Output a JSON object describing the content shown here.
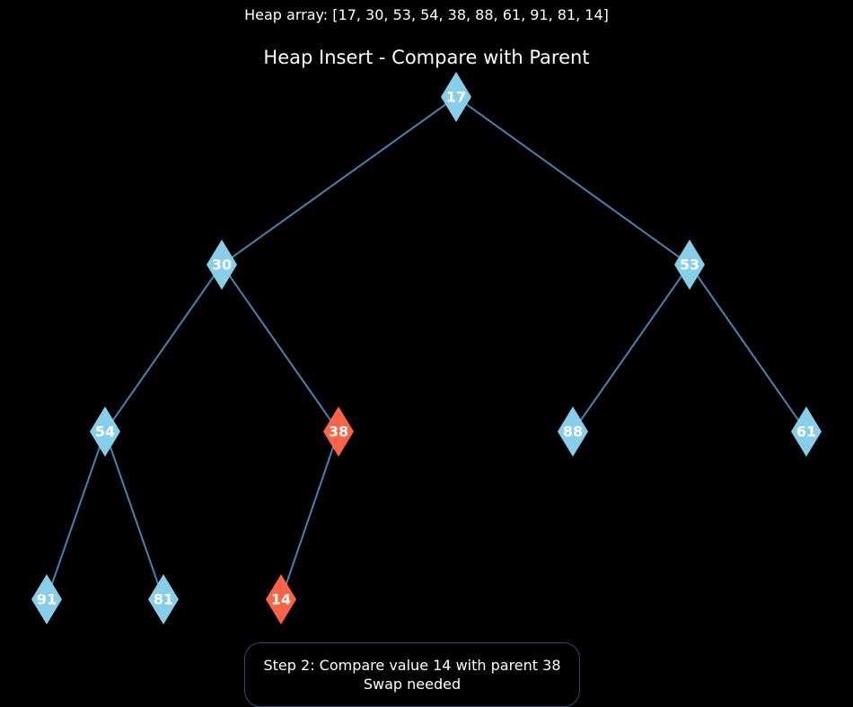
{
  "heap_array_label": "Heap array: [17, 30, 53, 54, 38, 88, 61, 91, 81, 14]",
  "title": "Heap Insert - Compare with Parent",
  "colors": {
    "background": "#000000",
    "edge": "#4682b4",
    "node_default": "#87ceeb",
    "node_highlight": "#ff6347",
    "text": "#ffffff"
  },
  "nodes": [
    {
      "id": 0,
      "value": "17",
      "highlight": false
    },
    {
      "id": 1,
      "value": "30",
      "highlight": false
    },
    {
      "id": 2,
      "value": "53",
      "highlight": false
    },
    {
      "id": 3,
      "value": "54",
      "highlight": false
    },
    {
      "id": 4,
      "value": "38",
      "highlight": true
    },
    {
      "id": 5,
      "value": "88",
      "highlight": false
    },
    {
      "id": 6,
      "value": "61",
      "highlight": false
    },
    {
      "id": 7,
      "value": "91",
      "highlight": false
    },
    {
      "id": 8,
      "value": "81",
      "highlight": false
    },
    {
      "id": 9,
      "value": "14",
      "highlight": true
    }
  ],
  "edges": [
    [
      0,
      1
    ],
    [
      0,
      2
    ],
    [
      1,
      3
    ],
    [
      1,
      4
    ],
    [
      2,
      5
    ],
    [
      2,
      6
    ],
    [
      3,
      7
    ],
    [
      3,
      8
    ],
    [
      4,
      9
    ]
  ],
  "step": {
    "line1": "Step 2: Compare value 14 with parent 38",
    "line2": "Swap needed"
  }
}
